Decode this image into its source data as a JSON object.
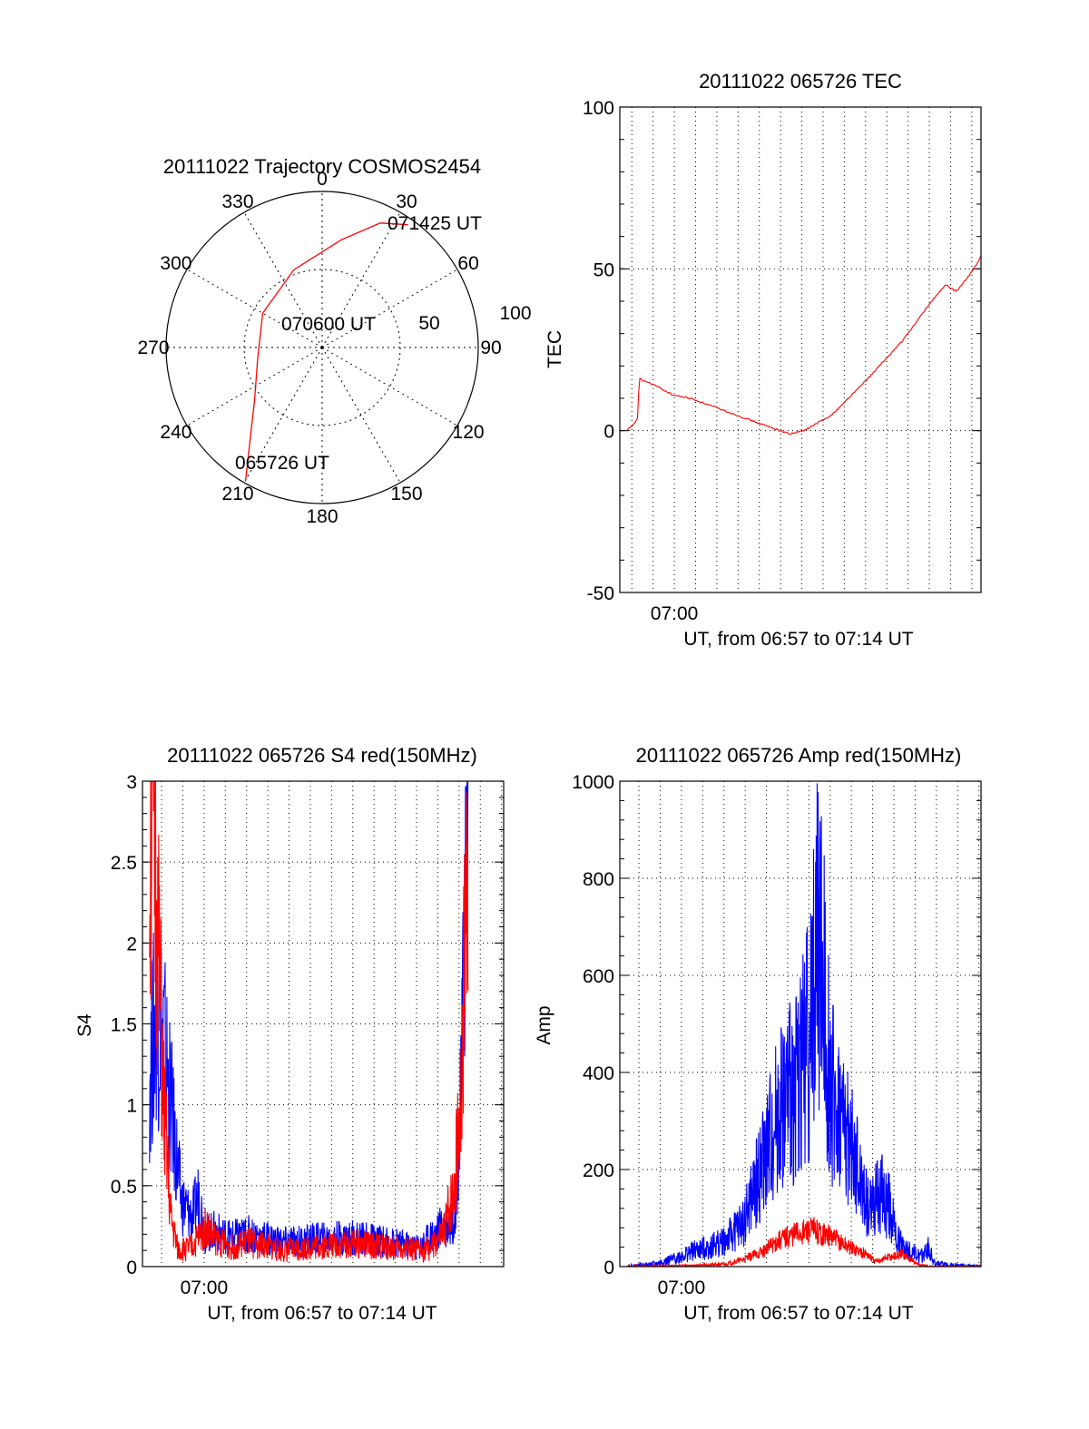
{
  "chart_data": [
    {
      "type": "polar",
      "title": "20111022 Trajectory COSMOS2454",
      "angle_labels": [
        "0",
        "30",
        "60",
        "90",
        "120",
        "150",
        "180",
        "210",
        "240",
        "270",
        "300",
        "330"
      ],
      "radial_labels": [
        "50",
        "100"
      ],
      "rlim": [
        0,
        100
      ],
      "annotations": [
        "071425 UT",
        "070600 UT",
        "065726 UT"
      ],
      "series": [
        {
          "color": "#ff0000",
          "points": [
            {
              "az": 210,
              "r": 98
            },
            {
              "az": 218,
              "r": 75
            },
            {
              "az": 232,
              "r": 55
            },
            {
              "az": 260,
              "r": 42
            },
            {
              "az": 300,
              "r": 44
            },
            {
              "az": 340,
              "r": 53
            },
            {
              "az": 10,
              "r": 70
            },
            {
              "az": 25,
              "r": 88
            },
            {
              "az": 35,
              "r": 96
            }
          ]
        }
      ]
    },
    {
      "type": "line",
      "title": "20111022 065726 TEC",
      "xlabel": "UT, from 06:57 to 07:14 UT",
      "ylabel": "TEC",
      "xlim": [
        0,
        1020
      ],
      "ylim": [
        -50,
        100
      ],
      "yticks": [
        "-50",
        "0",
        "50",
        "100"
      ],
      "xticks": [
        {
          "label": "07:00",
          "at": 154
        }
      ],
      "grid": true,
      "series": [
        {
          "color": "#ff0000",
          "x": [
            20,
            40,
            50,
            55,
            100,
            150,
            200,
            300,
            400,
            480,
            520,
            600,
            700,
            800,
            880,
            920,
            950,
            980,
            1000,
            1020
          ],
          "y": [
            0,
            2,
            4,
            16,
            14,
            11,
            10,
            6,
            2,
            -1,
            0,
            5,
            16,
            28,
            40,
            45,
            43,
            47,
            50,
            54
          ]
        }
      ]
    },
    {
      "type": "line",
      "title": "20111022 065726 S4 red(150MHz)",
      "xlabel": "UT, from 06:57 to 07:14 UT",
      "ylabel": "S4",
      "xlim": [
        0,
        1020
      ],
      "ylim": [
        0,
        3
      ],
      "yticks": [
        "0",
        "0.5",
        "1",
        "1.5",
        "2",
        "2.5",
        "3"
      ],
      "xticks": [
        {
          "label": "07:00",
          "at": 174
        }
      ],
      "grid": true,
      "series": [
        {
          "color": "#0000ff",
          "x": [
            20,
            40,
            60,
            90,
            110,
            140,
            160,
            175,
            200,
            250,
            300,
            400,
            500,
            600,
            700,
            780,
            820,
            850,
            880,
            900,
            910,
            920
          ],
          "y": [
            1.2,
            1.6,
            1.4,
            0.8,
            0.4,
            0.3,
            0.45,
            0.2,
            0.22,
            0.18,
            0.2,
            0.15,
            0.17,
            0.18,
            0.15,
            0.12,
            0.2,
            0.25,
            0.3,
            1.0,
            2.2,
            3.0
          ]
        },
        {
          "color": "#ff0000",
          "x": [
            20,
            30,
            40,
            60,
            80,
            100,
            140,
            180,
            200,
            250,
            300,
            400,
            500,
            600,
            700,
            780,
            820,
            850,
            880,
            900,
            910,
            920
          ],
          "y": [
            2.5,
            3.0,
            2.2,
            1.0,
            0.3,
            0.1,
            0.12,
            0.25,
            0.18,
            0.12,
            0.15,
            0.1,
            0.13,
            0.14,
            0.12,
            0.1,
            0.12,
            0.2,
            0.5,
            1.0,
            2.0,
            3.0
          ]
        }
      ]
    },
    {
      "type": "line",
      "title": "20111022 065726 Amp red(150MHz)",
      "xlabel": "UT, from 06:57 to 07:14 UT",
      "ylabel": "Amp",
      "xlim": [
        0,
        1020
      ],
      "ylim": [
        0,
        1000
      ],
      "yticks": [
        "0",
        "200",
        "400",
        "600",
        "800",
        "1000"
      ],
      "xticks": [
        {
          "label": "07:00",
          "at": 174
        }
      ],
      "grid": true,
      "series": [
        {
          "color": "#0000ff",
          "x": [
            20,
            100,
            150,
            200,
            250,
            300,
            350,
            400,
            450,
            500,
            540,
            560,
            600,
            650,
            700,
            740,
            760,
            780,
            800,
            850,
            870,
            890,
            1020
          ],
          "y": [
            0,
            5,
            15,
            30,
            40,
            55,
            90,
            200,
            320,
            380,
            500,
            700,
            350,
            250,
            120,
            150,
            130,
            60,
            40,
            20,
            40,
            5,
            0
          ]
        },
        {
          "color": "#ff0000",
          "x": [
            20,
            200,
            300,
            350,
            400,
            450,
            500,
            550,
            600,
            650,
            700,
            720,
            760,
            800,
            840,
            870,
            1020
          ],
          "y": [
            0,
            2,
            5,
            15,
            30,
            55,
            70,
            75,
            60,
            40,
            25,
            10,
            20,
            25,
            5,
            0,
            0
          ]
        }
      ]
    }
  ]
}
